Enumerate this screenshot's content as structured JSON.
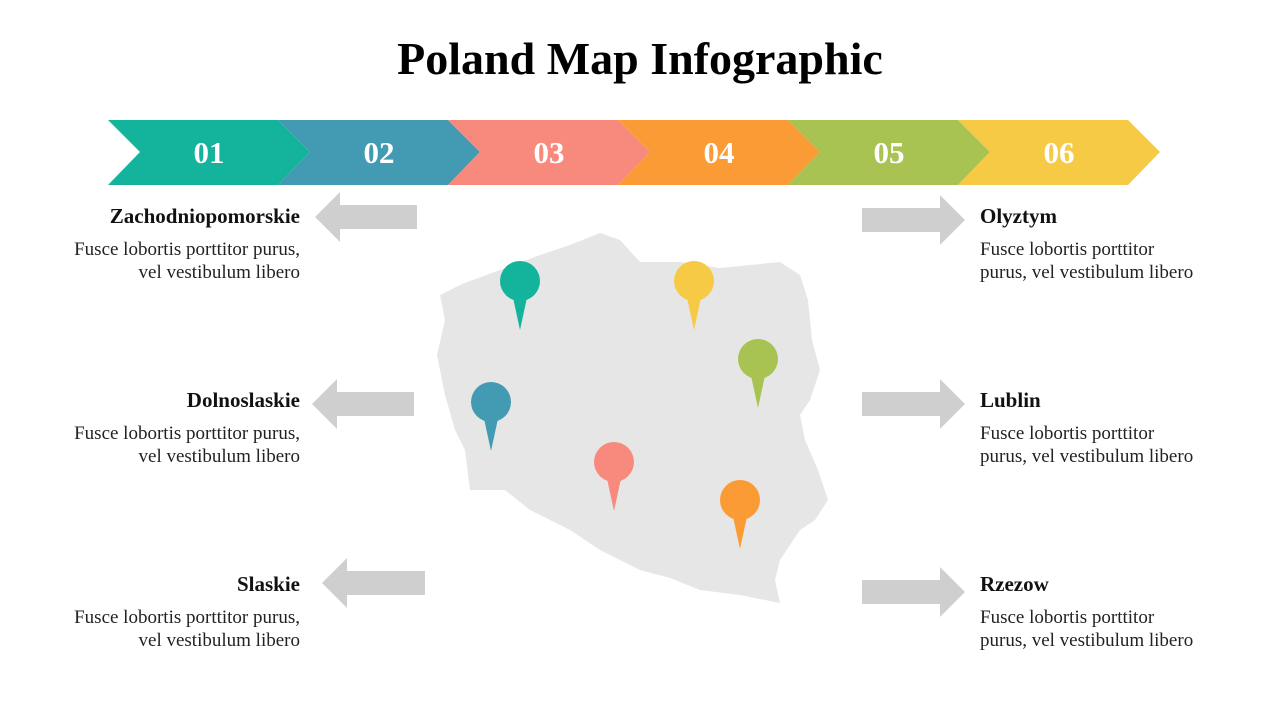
{
  "title": "Poland Map Infographic",
  "steps": [
    {
      "number": "01",
      "color": "#14b39b"
    },
    {
      "number": "02",
      "color": "#429bb3"
    },
    {
      "number": "03",
      "color": "#f78a7d"
    },
    {
      "number": "04",
      "color": "#fb9b35"
    },
    {
      "number": "05",
      "color": "#a9c352"
    },
    {
      "number": "06",
      "color": "#f6ca45"
    }
  ],
  "regions": {
    "left": [
      {
        "name": "Zachodniopomorskie",
        "text": "Fusce lobortis porttitor purus, vel vestibulum libero"
      },
      {
        "name": "Dolnoslaskie",
        "text": "Fusce lobortis porttitor purus, vel vestibulum libero"
      },
      {
        "name": "Slaskie",
        "text": "Fusce lobortis porttitor purus, vel vestibulum libero"
      }
    ],
    "right": [
      {
        "name": "Olyztym",
        "text": "Fusce lobortis porttitor purus, vel vestibulum libero"
      },
      {
        "name": "Lublin",
        "text": "Fusce lobortis porttitor purus, vel vestibulum libero"
      },
      {
        "name": "Rzezow",
        "text": "Fusce lobortis porttitor purus, vel vestibulum libero"
      }
    ]
  }
}
